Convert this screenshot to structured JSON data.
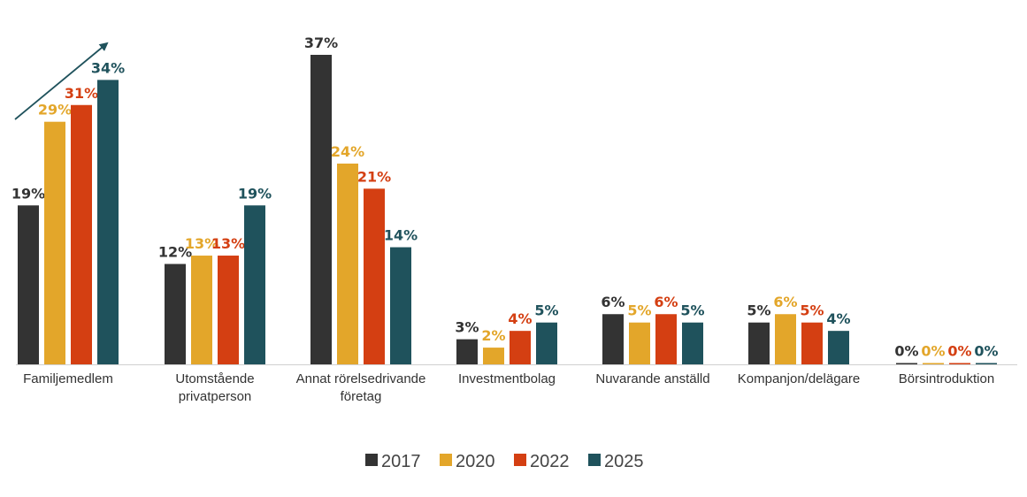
{
  "chart_data": {
    "type": "bar",
    "title": "",
    "xlabel": "",
    "ylabel": "",
    "ylim": [
      0,
      40
    ],
    "grid": false,
    "legend_position": "bottom",
    "categories": [
      [
        "Familjemedlem"
      ],
      [
        "Utomstående",
        "privatperson"
      ],
      [
        "Annat rörelsedrivande",
        "företag"
      ],
      [
        "Investmentbolag"
      ],
      [
        "Nuvarande anställd"
      ],
      [
        "Kompanjon/delägare"
      ],
      [
        "Börsintroduktion"
      ]
    ],
    "series": [
      {
        "name": "2017",
        "color": "#333333",
        "values": [
          19,
          12,
          37,
          3,
          6,
          5,
          0
        ],
        "labels": [
          "19%",
          "12%",
          "37%",
          "3%",
          "6%",
          "5%",
          "0%"
        ]
      },
      {
        "name": "2020",
        "color": "#E3A62A",
        "values": [
          29,
          13,
          24,
          2,
          5,
          6,
          0
        ],
        "labels": [
          "29%",
          "13%",
          "24%",
          "2%",
          "5%",
          "6%",
          "0%"
        ]
      },
      {
        "name": "2022",
        "color": "#D43F12",
        "values": [
          31,
          13,
          21,
          4,
          6,
          5,
          0
        ],
        "labels": [
          "31%",
          "13%",
          "21%",
          "4%",
          "6%",
          "5%",
          "0%"
        ]
      },
      {
        "name": "2025",
        "color": "#1F525C",
        "values": [
          34,
          19,
          14,
          5,
          5,
          4,
          0
        ],
        "labels": [
          "34%",
          "19%",
          "14%",
          "5%",
          "5%",
          "4%",
          "0%"
        ]
      }
    ],
    "annotations": [
      {
        "type": "trend-arrow",
        "category_index": 0,
        "color": "#1F525C"
      }
    ]
  }
}
